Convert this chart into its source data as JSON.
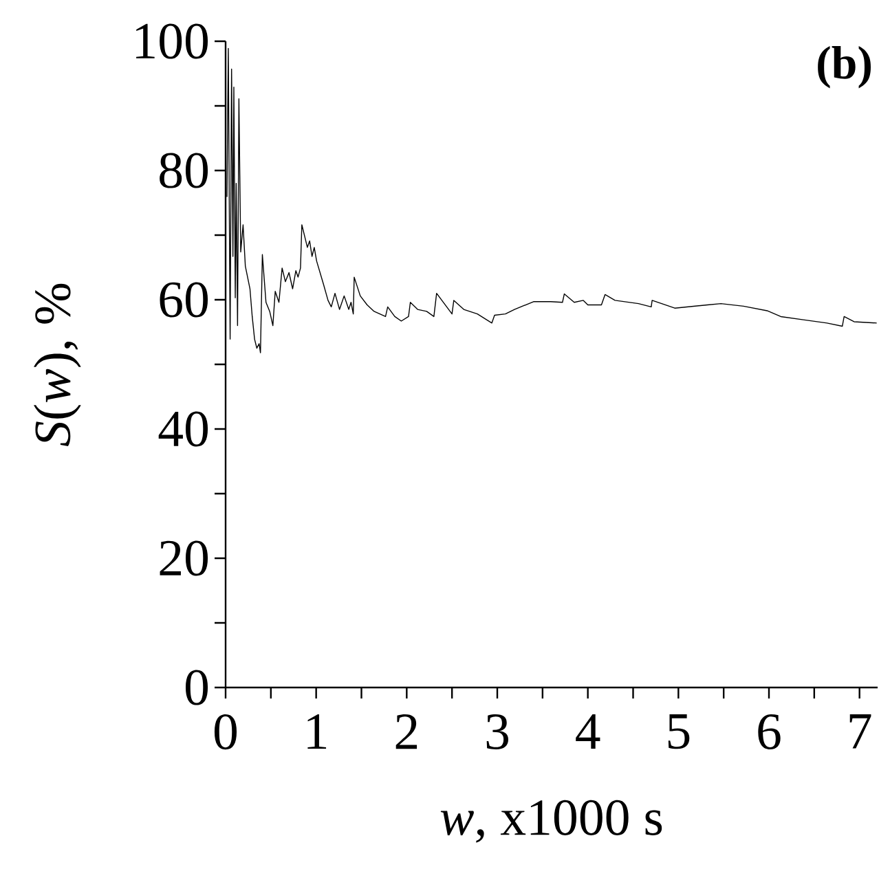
{
  "chart_data": {
    "type": "line",
    "xlabel": "*w*, x1000 s",
    "ylabel": "*S*(*w*), %",
    "annotations": [
      "(b)"
    ],
    "color": "#000000",
    "x": [
      0.015,
      0.03,
      0.05,
      0.066,
      0.081,
      0.091,
      0.107,
      0.117,
      0.132,
      0.147,
      0.167,
      0.193,
      0.218,
      0.269,
      0.294,
      0.32,
      0.345,
      0.37,
      0.385,
      0.406,
      0.446,
      0.487,
      0.522,
      0.548,
      0.589,
      0.624,
      0.66,
      0.7,
      0.74,
      0.776,
      0.8,
      0.827,
      0.842,
      0.903,
      0.928,
      0.954,
      0.979,
      1.005,
      1.081,
      1.131,
      1.167,
      1.208,
      1.258,
      1.309,
      1.36,
      1.385,
      1.41,
      1.42,
      1.487,
      1.563,
      1.64,
      1.766,
      1.79,
      1.868,
      1.94,
      2.02,
      2.04,
      2.12,
      2.22,
      2.3,
      2.33,
      2.5,
      2.52,
      2.63,
      2.78,
      2.94,
      2.97,
      3.09,
      3.19,
      3.4,
      3.59,
      3.72,
      3.74,
      3.85,
      3.95,
      4.0,
      4.15,
      4.19,
      4.3,
      4.56,
      4.7,
      4.71,
      4.96,
      5.32,
      5.47,
      5.72,
      5.98,
      6.13,
      6.38,
      6.64,
      6.81,
      6.83,
      6.94,
      7.19
    ],
    "values": [
      75.9,
      98.9,
      53.9,
      95.7,
      66.7,
      92.9,
      60.3,
      78.0,
      56.0,
      91.1,
      67.4,
      71.6,
      65.2,
      61.7,
      57.4,
      53.9,
      52.5,
      53.2,
      51.8,
      67.0,
      59.6,
      58.2,
      56.0,
      61.3,
      59.6,
      64.9,
      62.8,
      64.2,
      61.7,
      64.5,
      63.5,
      64.9,
      71.6,
      68.1,
      69.1,
      66.7,
      68.1,
      66.0,
      62.4,
      59.9,
      58.9,
      61.0,
      58.5,
      60.6,
      58.5,
      59.6,
      57.8,
      63.5,
      60.6,
      59.2,
      58.2,
      57.4,
      58.9,
      57.4,
      56.7,
      57.4,
      59.6,
      58.5,
      58.2,
      57.4,
      61.0,
      57.8,
      59.9,
      58.5,
      57.8,
      56.4,
      57.6,
      57.8,
      58.5,
      59.7,
      59.7,
      59.6,
      60.9,
      59.6,
      59.9,
      59.2,
      59.2,
      60.8,
      59.9,
      59.4,
      58.9,
      59.9,
      58.7,
      59.2,
      59.4,
      59.0,
      58.3,
      57.4,
      56.9,
      56.4,
      55.9,
      57.4,
      56.6,
      56.4
    ],
    "xlim": [
      0,
      7.2
    ],
    "xticks": [
      0,
      {
        "value": 0.5,
        "label": null
      },
      1,
      {
        "value": 1.5,
        "label": null
      },
      2,
      {
        "value": 2.5,
        "label": null
      },
      3,
      {
        "value": 3.5,
        "label": null
      },
      4,
      {
        "value": 4.5,
        "label": null
      },
      5,
      {
        "value": 5.5,
        "label": null
      },
      6,
      {
        "value": 6.5,
        "label": null
      },
      7
    ],
    "ylim": [
      0,
      100
    ],
    "yticks": [
      0,
      {
        "value": 10,
        "label": null
      },
      20,
      {
        "value": 30,
        "label": null
      },
      40,
      {
        "value": 50,
        "label": null
      },
      60,
      {
        "value": 70,
        "label": null
      },
      80,
      {
        "value": 90,
        "label": null
      },
      100
    ]
  }
}
